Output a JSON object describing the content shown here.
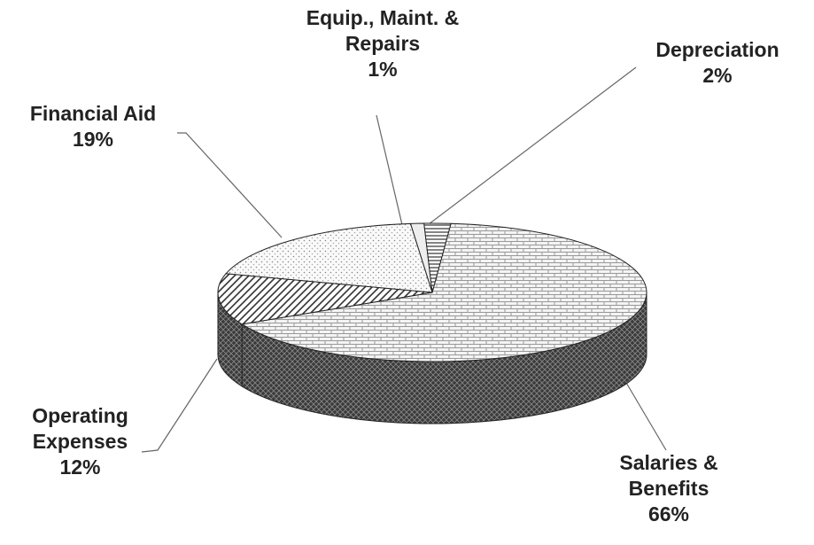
{
  "chart_data": {
    "type": "pie",
    "categories": [
      "Salaries & Benefits",
      "Operating Expenses",
      "Financial Aid",
      "Equip., Maint. & Repairs",
      "Depreciation"
    ],
    "values": [
      66,
      12,
      19,
      1,
      2
    ],
    "value_labels": [
      "66%",
      "12%",
      "19%",
      "1%",
      "2%"
    ]
  }
}
